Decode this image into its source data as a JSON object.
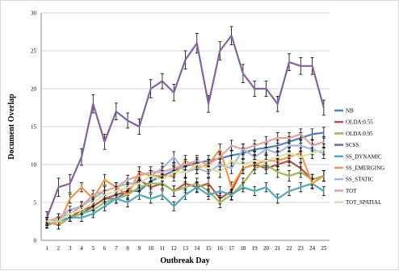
{
  "chart_data": {
    "type": "line",
    "title": "",
    "xlabel": "Outbreak Day",
    "ylabel": "Document Overlap",
    "x": [
      1,
      2,
      3,
      4,
      5,
      6,
      7,
      8,
      9,
      10,
      11,
      12,
      13,
      14,
      15,
      16,
      17,
      18,
      19,
      20,
      21,
      22,
      23,
      24,
      25
    ],
    "ylim": [
      0,
      30
    ],
    "yticks": [
      0,
      5,
      10,
      15,
      20,
      25,
      30
    ],
    "grid": true,
    "legend_position": "right",
    "series": [
      {
        "name": "NB",
        "color": "#4f81bd",
        "values": [
          2.5,
          2.6,
          3.0,
          3.5,
          4.5,
          5.5,
          5.5,
          6.5,
          6.5,
          7.8,
          8.5,
          9.2,
          9.8,
          10.2,
          10.5,
          10.8,
          11.2,
          11.5,
          12.0,
          12.2,
          12.5,
          13.0,
          13.5,
          14.0,
          14.2
        ],
        "errors": [
          0.5,
          0.5,
          0.5,
          0.5,
          0.6,
          0.6,
          0.6,
          0.6,
          0.6,
          0.7,
          0.7,
          0.7,
          0.7,
          0.7,
          0.7,
          0.7,
          0.7,
          0.7,
          0.7,
          0.7,
          0.7,
          0.7,
          0.7,
          0.7,
          0.7
        ]
      },
      {
        "name": "OLDA:0.55",
        "color": "#c0504d",
        "values": [
          2.2,
          2.5,
          3.0,
          4.0,
          4.5,
          5.5,
          6.0,
          6.5,
          8.0,
          7.0,
          7.5,
          6.5,
          7.5,
          7.0,
          7.5,
          5.5,
          6.5,
          9.5,
          10.0,
          9.5,
          10.0,
          10.5,
          9.5,
          8.0,
          8.5
        ],
        "errors": [
          0.5,
          0.5,
          0.5,
          0.6,
          0.6,
          0.6,
          0.6,
          0.6,
          0.7,
          0.7,
          0.7,
          0.7,
          0.7,
          0.7,
          0.7,
          0.7,
          0.7,
          0.7,
          0.7,
          0.7,
          0.7,
          0.7,
          0.7,
          0.7,
          0.7
        ]
      },
      {
        "name": "OLDA:0.95",
        "color": "#9bbb59",
        "values": [
          2.5,
          2.0,
          3.0,
          3.5,
          4.0,
          5.0,
          5.5,
          6.0,
          7.0,
          7.5,
          7.5,
          6.5,
          7.0,
          7.5,
          6.5,
          5.0,
          6.0,
          7.5,
          9.5,
          10.0,
          9.0,
          8.5,
          9.0,
          8.0,
          8.5
        ],
        "errors": [
          0.5,
          0.5,
          0.5,
          0.5,
          0.6,
          0.6,
          0.6,
          0.6,
          0.6,
          0.7,
          0.7,
          0.7,
          0.7,
          0.7,
          0.7,
          0.7,
          0.7,
          0.7,
          0.7,
          0.7,
          0.7,
          0.7,
          0.7,
          0.7,
          0.7
        ]
      },
      {
        "name": "SCSS",
        "color": "#8064a2",
        "values": [
          3.0,
          7.0,
          7.5,
          11.0,
          18.0,
          13.0,
          17.0,
          15.8,
          15.0,
          20.0,
          21.0,
          19.5,
          23.8,
          26.0,
          18.0,
          25.0,
          27.0,
          22.0,
          20.0,
          20.0,
          18.0,
          23.5,
          23.0,
          23.0,
          17.5
        ],
        "errors": [
          0.8,
          1.2,
          1.2,
          1.1,
          1.2,
          1.0,
          1.1,
          1.0,
          1.0,
          1.2,
          1.0,
          1.1,
          1.2,
          1.3,
          1.1,
          1.2,
          1.2,
          1.2,
          1.0,
          1.0,
          1.0,
          1.1,
          1.1,
          1.1,
          1.0
        ]
      },
      {
        "name": "SS_DYNAMIC",
        "color": "#4bacc6",
        "values": [
          2.0,
          2.5,
          3.0,
          3.0,
          3.5,
          4.5,
          5.5,
          5.0,
          6.0,
          5.5,
          6.0,
          4.5,
          6.0,
          7.0,
          6.0,
          6.5,
          6.0,
          7.0,
          6.5,
          7.0,
          5.5,
          6.5,
          7.0,
          7.5,
          6.5
        ],
        "errors": [
          0.4,
          0.4,
          0.5,
          0.5,
          0.5,
          0.6,
          0.6,
          0.6,
          0.6,
          0.6,
          0.6,
          0.6,
          0.6,
          0.6,
          0.6,
          0.6,
          0.6,
          0.6,
          0.6,
          0.6,
          0.6,
          0.6,
          0.6,
          0.6,
          0.6
        ]
      },
      {
        "name": "SS_EMERGING",
        "color": "#f79646",
        "values": [
          2.5,
          2.0,
          5.5,
          7.0,
          5.5,
          8.0,
          7.0,
          6.0,
          9.0,
          8.5,
          8.5,
          8.5,
          10.5,
          9.5,
          10.0,
          12.0,
          7.0,
          9.5,
          10.0,
          10.5,
          10.5,
          11.0,
          11.5,
          7.5,
          8.5
        ],
        "errors": [
          0.5,
          0.5,
          0.6,
          0.6,
          0.6,
          0.7,
          0.6,
          0.6,
          0.7,
          0.7,
          0.7,
          0.7,
          0.7,
          0.7,
          0.7,
          0.7,
          0.7,
          0.7,
          0.7,
          0.7,
          0.7,
          0.7,
          0.7,
          0.7,
          0.7
        ]
      },
      {
        "name": "SS_STATIC",
        "color": "#a6b8d9",
        "values": [
          2.5,
          3.0,
          4.0,
          4.5,
          5.5,
          6.5,
          7.0,
          7.5,
          7.5,
          8.5,
          9.5,
          11.0,
          9.0,
          9.5,
          9.0,
          10.0,
          9.5,
          12.0,
          11.0,
          12.0,
          11.5,
          12.5,
          12.5,
          12.0,
          11.5
        ],
        "errors": [
          0.5,
          0.5,
          0.5,
          0.6,
          0.6,
          0.6,
          0.6,
          0.6,
          0.6,
          0.7,
          0.7,
          0.7,
          0.7,
          0.7,
          0.7,
          0.7,
          0.7,
          0.7,
          0.7,
          0.7,
          0.7,
          0.7,
          0.7,
          0.7,
          0.7
        ]
      },
      {
        "name": "TOT",
        "color": "#e6a29d",
        "values": [
          2.5,
          3.0,
          3.5,
          4.5,
          6.0,
          6.5,
          7.0,
          8.0,
          8.5,
          9.0,
          9.0,
          9.5,
          10.0,
          10.5,
          10.0,
          11.0,
          12.5,
          12.0,
          12.5,
          13.0,
          13.5,
          13.5,
          14.0,
          12.5,
          13.0
        ],
        "errors": [
          0.5,
          0.5,
          0.5,
          0.6,
          0.6,
          0.6,
          0.6,
          0.6,
          0.6,
          0.7,
          0.7,
          0.7,
          0.7,
          0.7,
          0.7,
          0.7,
          0.7,
          0.7,
          0.7,
          0.7,
          0.7,
          0.7,
          0.7,
          0.7,
          0.7
        ]
      },
      {
        "name": "TOT_SPATIAL",
        "color": "#d7e4a5",
        "values": [
          2.5,
          2.5,
          3.5,
          4.0,
          5.0,
          6.0,
          6.5,
          7.0,
          7.5,
          8.5,
          8.0,
          9.0,
          9.0,
          10.0,
          9.5,
          9.0,
          10.5,
          10.0,
          10.5,
          10.5,
          11.0,
          11.5,
          11.0,
          11.5,
          12.0
        ],
        "errors": [
          0.5,
          0.5,
          0.5,
          0.5,
          0.6,
          0.6,
          0.6,
          0.6,
          0.6,
          0.7,
          0.7,
          0.7,
          0.7,
          0.7,
          0.7,
          0.7,
          0.7,
          0.7,
          0.7,
          0.7,
          0.7,
          0.7,
          0.7,
          0.7,
          0.7
        ]
      }
    ]
  }
}
